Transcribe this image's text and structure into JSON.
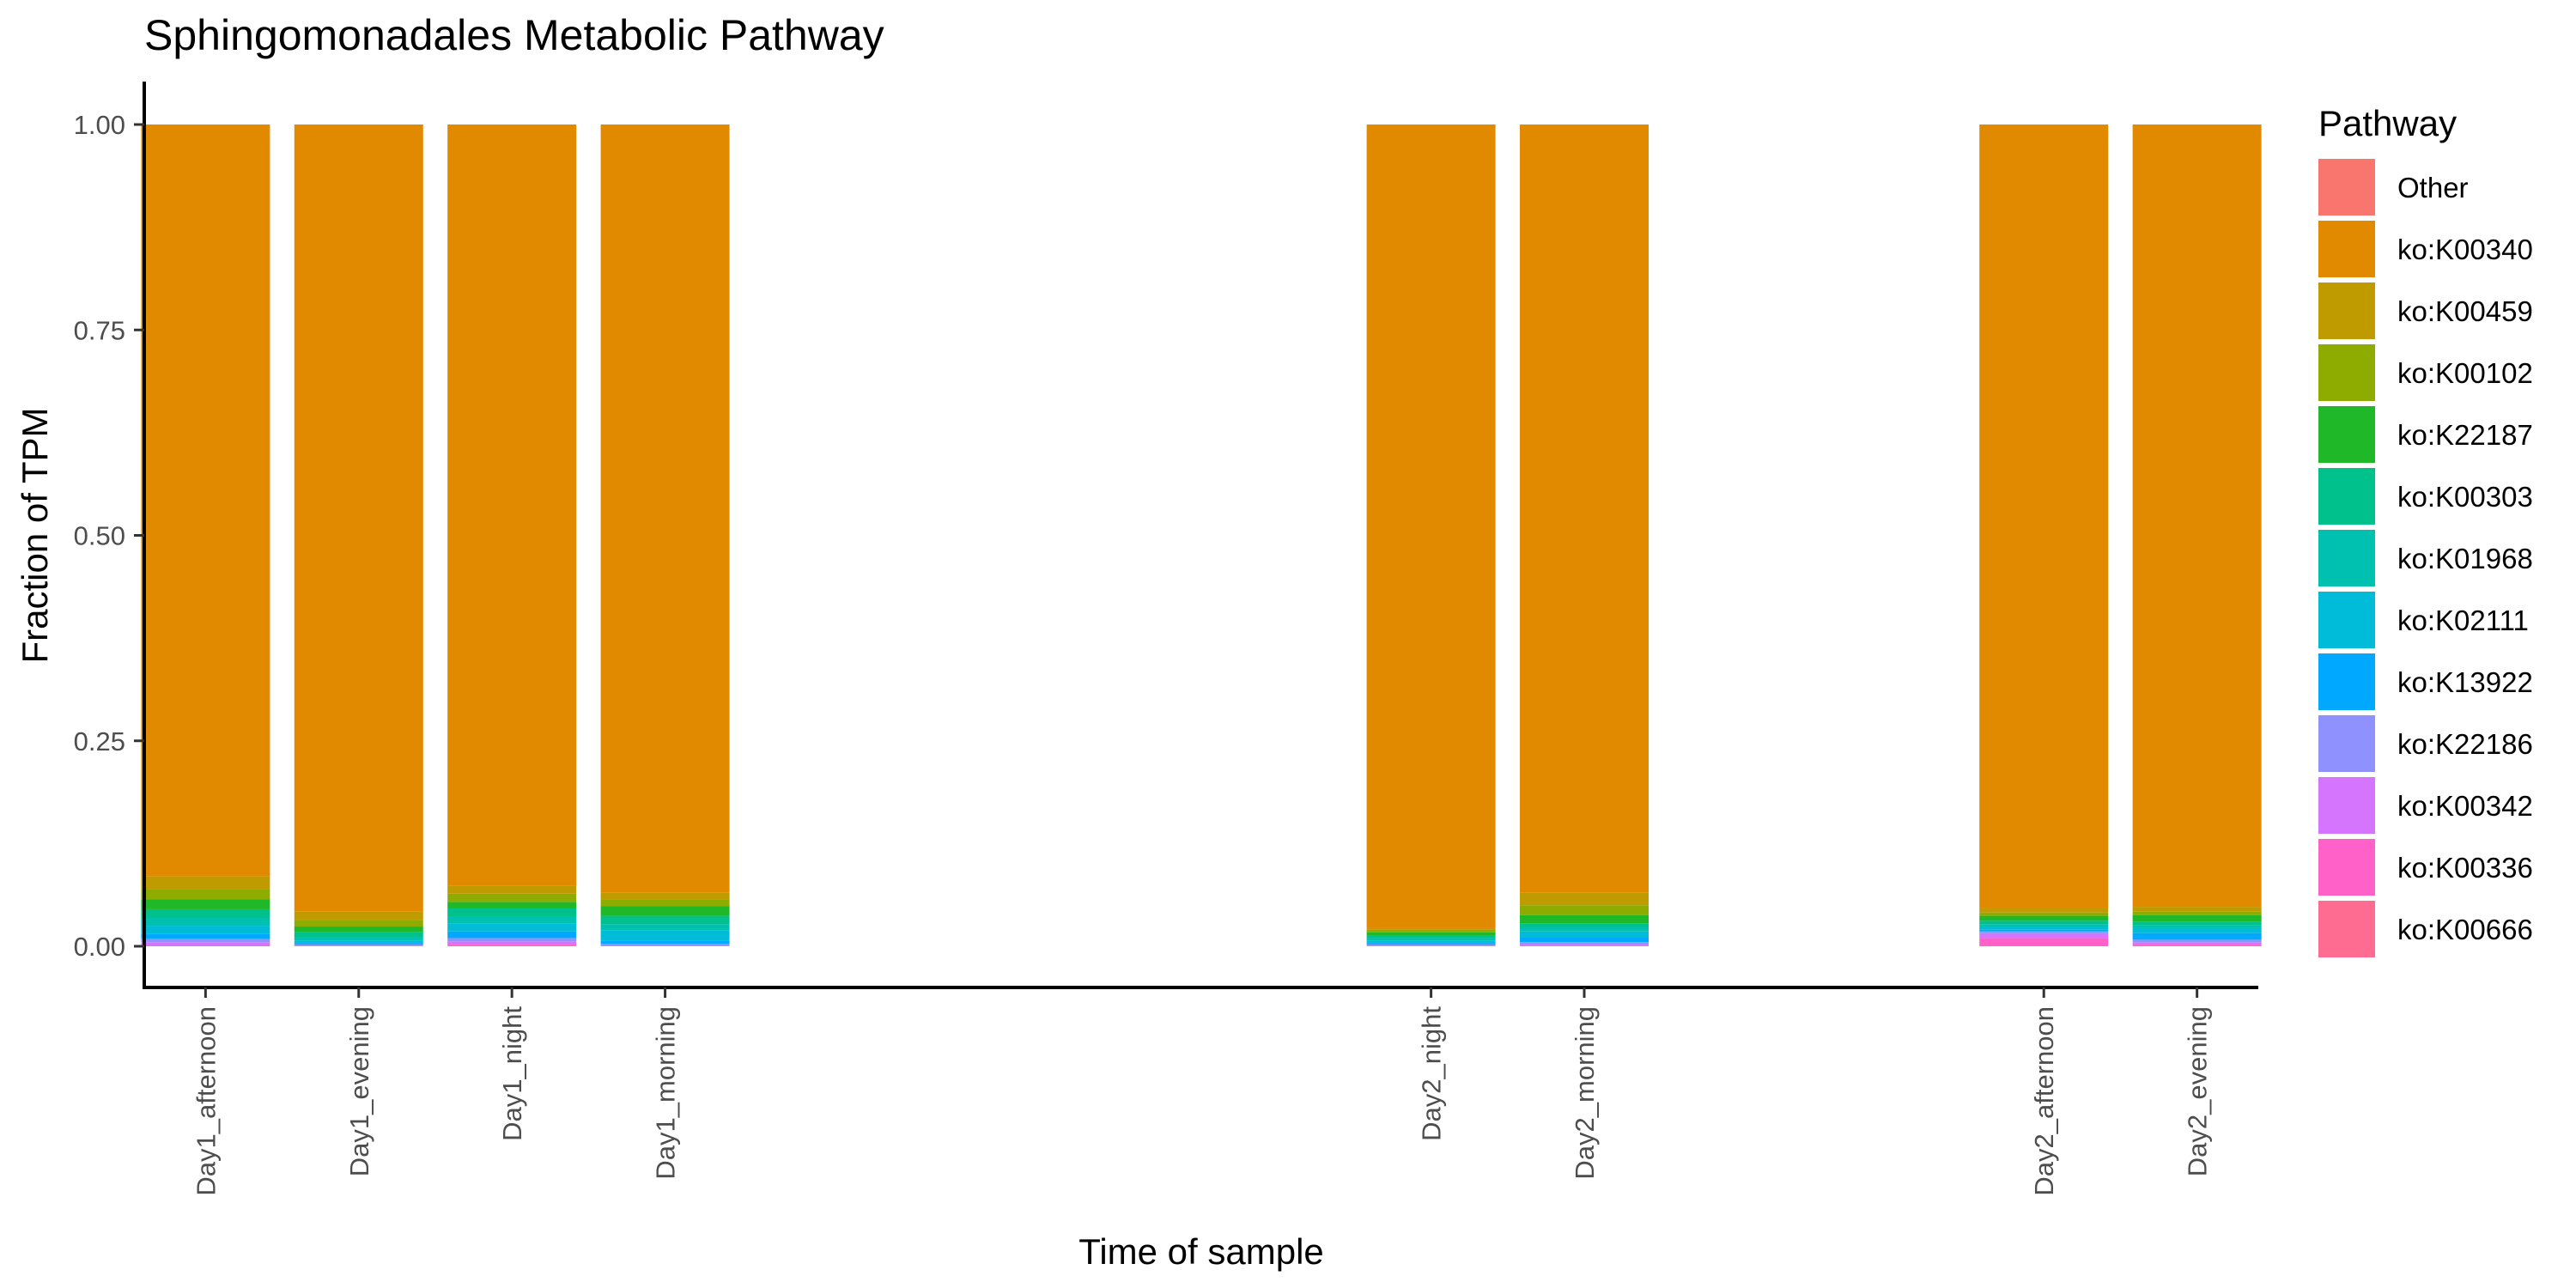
{
  "chart_data": {
    "type": "bar",
    "stacked": true,
    "title": "Sphingomonadales Metabolic Pathway",
    "xlabel": "Time of sample",
    "ylabel": "Fraction of TPM",
    "ylim": [
      0,
      1
    ],
    "yticks": [
      "0.00",
      "0.25",
      "0.50",
      "0.75",
      "1.00"
    ],
    "grid": false,
    "legend": {
      "title": "Pathway",
      "position": "right"
    },
    "x_positions": [
      1,
      2,
      3,
      4,
      9,
      10,
      13,
      14
    ],
    "categories": [
      "Day1_afternoon",
      "Day1_evening",
      "Day1_night",
      "Day1_morning",
      "Day2_night",
      "Day2_morning",
      "Day2_afternoon",
      "Day2_evening"
    ],
    "series": [
      {
        "name": "ko:K00666",
        "color": "#FF6C91",
        "values": [
          0.0,
          0.0,
          0.0,
          0.0,
          0.0,
          0.0,
          0.0,
          0.0
        ]
      },
      {
        "name": "ko:K00336",
        "color": "#FF61C9",
        "values": [
          0.001,
          0.0,
          0.002,
          0.0,
          0.0,
          0.0,
          0.01,
          0.002
        ]
      },
      {
        "name": "ko:K00342",
        "color": "#D575FE",
        "values": [
          0.004,
          0.001,
          0.004,
          0.001,
          0.001,
          0.002,
          0.006,
          0.003
        ]
      },
      {
        "name": "ko:K22186",
        "color": "#8F91FF",
        "values": [
          0.004,
          0.001,
          0.004,
          0.002,
          0.001,
          0.003,
          0.002,
          0.003
        ]
      },
      {
        "name": "ko:K13922",
        "color": "#00A9FF",
        "values": [
          0.006,
          0.002,
          0.008,
          0.004,
          0.002,
          0.006,
          0.002,
          0.008
        ]
      },
      {
        "name": "ko:K02111",
        "color": "#00BCD8",
        "values": [
          0.01,
          0.003,
          0.01,
          0.012,
          0.003,
          0.007,
          0.003,
          0.006
        ]
      },
      {
        "name": "ko:K01968",
        "color": "#00C0AF",
        "values": [
          0.01,
          0.004,
          0.008,
          0.008,
          0.003,
          0.005,
          0.004,
          0.004
        ]
      },
      {
        "name": "ko:K00303",
        "color": "#00C08B",
        "values": [
          0.01,
          0.006,
          0.01,
          0.01,
          0.003,
          0.005,
          0.004,
          0.004
        ]
      },
      {
        "name": "ko:K22187",
        "color": "#1EB829",
        "values": [
          0.012,
          0.007,
          0.008,
          0.012,
          0.004,
          0.01,
          0.006,
          0.008
        ]
      },
      {
        "name": "ko:K00102",
        "color": "#8EAB00",
        "values": [
          0.012,
          0.008,
          0.01,
          0.008,
          0.003,
          0.012,
          0.004,
          0.004
        ]
      },
      {
        "name": "ko:K00459",
        "color": "#C09B00",
        "values": [
          0.016,
          0.01,
          0.01,
          0.008,
          0.002,
          0.015,
          0.006,
          0.006
        ]
      },
      {
        "name": "ko:K00340",
        "color": "#E18A00",
        "values": [
          0.915,
          0.958,
          0.926,
          0.935,
          0.978,
          0.935,
          0.953,
          0.952
        ]
      },
      {
        "name": "Other",
        "color": "#F8766D",
        "values": [
          0.0,
          0.0,
          0.0,
          0.0,
          0.0,
          0.0,
          0.0,
          0.0
        ]
      }
    ],
    "legend_order": [
      "Other",
      "ko:K00340",
      "ko:K00459",
      "ko:K00102",
      "ko:K22187",
      "ko:K00303",
      "ko:K01968",
      "ko:K02111",
      "ko:K13922",
      "ko:K22186",
      "ko:K00342",
      "ko:K00336",
      "ko:K00666"
    ]
  }
}
